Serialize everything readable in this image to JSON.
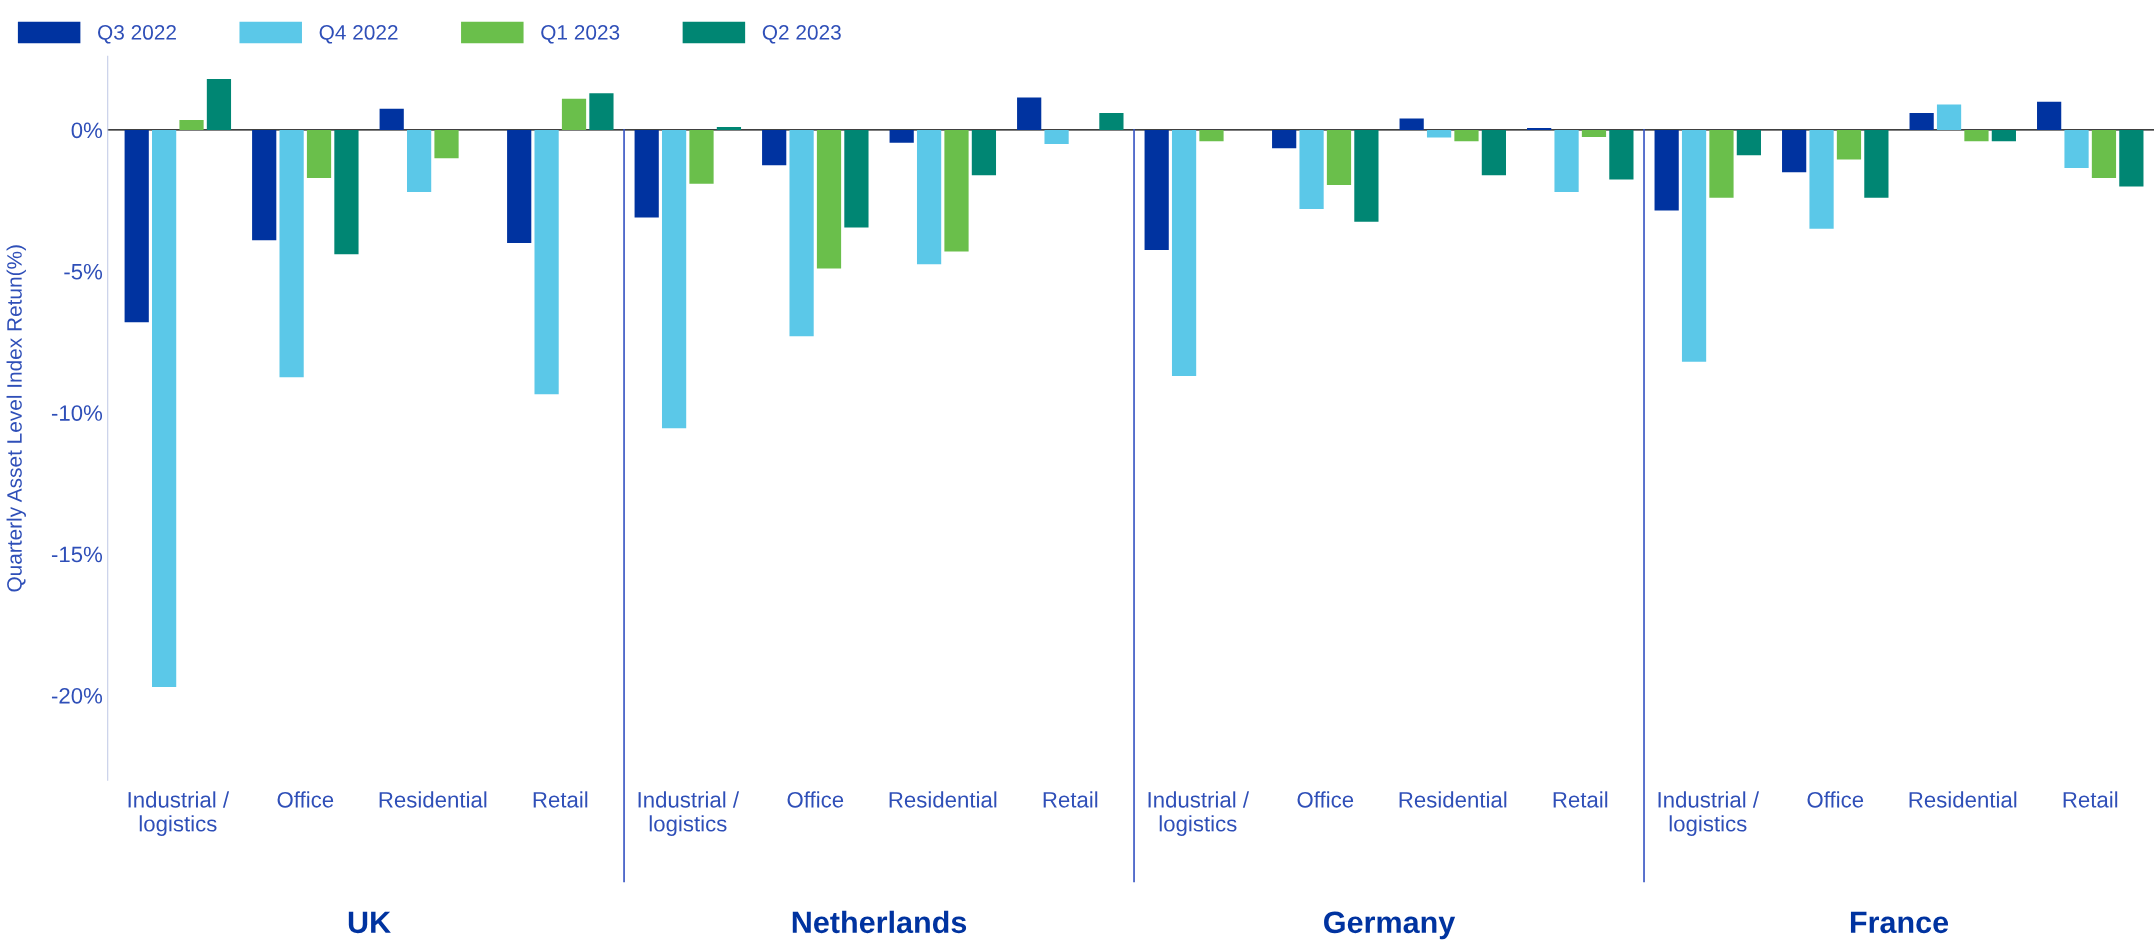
{
  "chart_data": {
    "type": "bar",
    "ylabel": "Quarterly Asset Level Index Retun(%)",
    "categories": [
      "Industrial /\nlogistics",
      "Office",
      "Residential",
      "Retail",
      "Industrial /\nlogistics",
      "Office",
      "Residential",
      "Retail",
      "Industrial /\nlogistics",
      "Office",
      "Residential",
      "Retail",
      "Industrial /\nlogistics",
      "Office",
      "Residential",
      "Retail"
    ],
    "annotations": [
      "UK",
      "Netherlands",
      "Germany",
      "France"
    ],
    "series": [
      {
        "name": "Q3 2022",
        "color": "#0033a0",
        "values": [
          -6.8,
          -3.9,
          0.75,
          -4.0,
          -3.1,
          -1.25,
          -0.45,
          1.15,
          -4.25,
          -0.65,
          0.4,
          0.07,
          -2.85,
          -1.5,
          0.6,
          1.0
        ]
      },
      {
        "name": "Q4 2022",
        "color": "#5bc8e8",
        "values": [
          -19.7,
          -8.75,
          -2.2,
          -9.35,
          -10.55,
          -7.3,
          -4.75,
          -0.5,
          -8.7,
          -2.8,
          -0.27,
          -2.2,
          -8.2,
          -3.5,
          0.9,
          -1.35
        ]
      },
      {
        "name": "Q1 2023",
        "color": "#6abf4b",
        "values": [
          0.35,
          -1.7,
          -1.0,
          1.1,
          -1.9,
          -4.9,
          -4.3,
          0.0,
          -0.4,
          -1.95,
          -0.4,
          -0.25,
          -2.4,
          -1.05,
          -0.4,
          -1.7
        ]
      },
      {
        "name": "Q2 2023",
        "color": "#008673",
        "values": [
          1.8,
          -4.4,
          0.0,
          1.3,
          0.1,
          -3.45,
          -1.6,
          0.6,
          0.0,
          -3.25,
          -1.6,
          -1.75,
          -0.9,
          -2.4,
          -0.4,
          -2.0
        ]
      }
    ],
    "ylim": [
      -23,
      2.6
    ],
    "yticks": [
      {
        "value": 0,
        "label": "0%"
      },
      {
        "value": -5,
        "label": "-5%"
      },
      {
        "value": -10,
        "label": "-10%"
      },
      {
        "value": -15,
        "label": "-15%"
      },
      {
        "value": -20,
        "label": "-20%"
      }
    ],
    "grid": false,
    "legend": "top left"
  }
}
